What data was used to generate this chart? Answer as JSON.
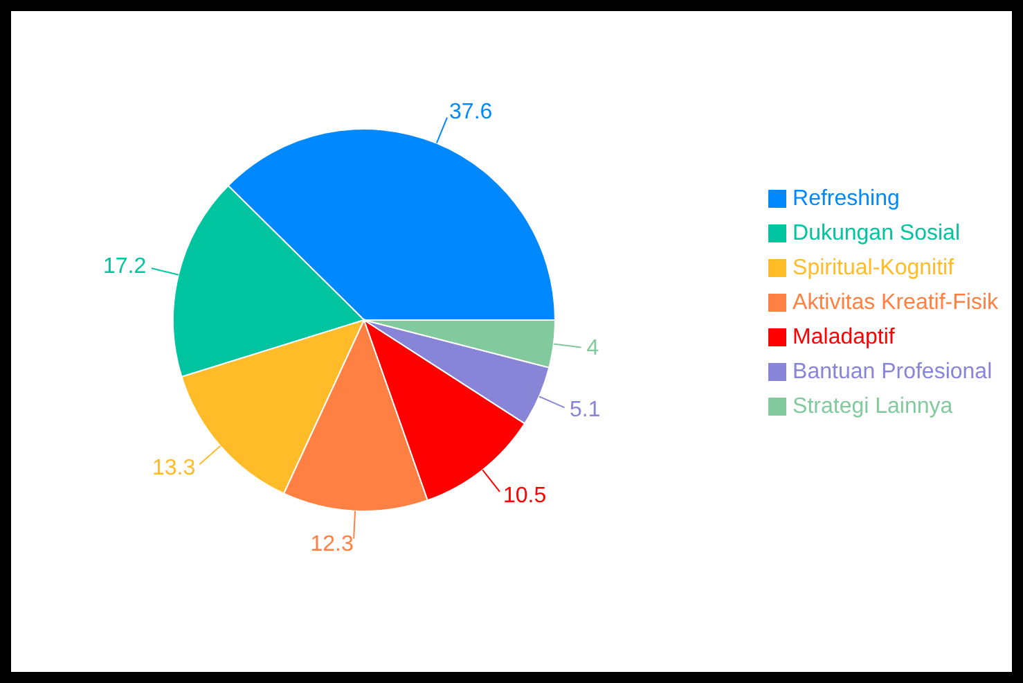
{
  "chart_data": {
    "type": "pie",
    "categories": [
      "Refreshing",
      "Dukungan Sosial",
      "Spiritual-Kognitif",
      "Aktivitas Kreatif-Fisik",
      "Maladaptif",
      "Bantuan Profesional",
      "Strategi Lainnya"
    ],
    "values": [
      37.6,
      17.2,
      13.3,
      12.3,
      10.5,
      5.1,
      4
    ],
    "colors": [
      "#0088fe",
      "#00c49f",
      "#ffbb28",
      "#ff8042",
      "#ff0000",
      "#8884d8",
      "#82ca9d"
    ],
    "data_labels": true,
    "legend": "right"
  }
}
